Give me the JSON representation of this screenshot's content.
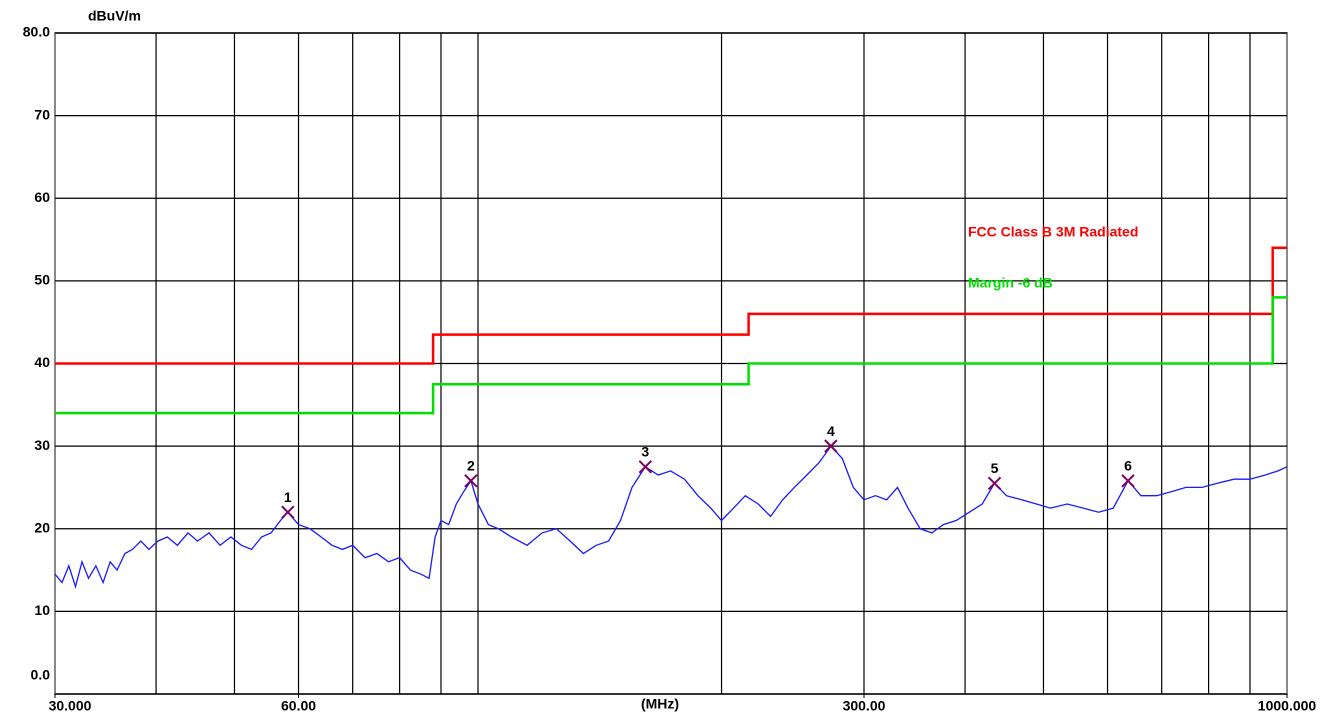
{
  "chart_data": {
    "type": "line",
    "y_unit": "dBuV/m",
    "x_label": "(MHz)",
    "xlog": true,
    "xlim": [
      30,
      1000
    ],
    "ylim": [
      0,
      80
    ],
    "xticks": [
      {
        "value": 30,
        "label": "30.000"
      },
      {
        "value": 60,
        "label": "60.00"
      },
      {
        "value": 300,
        "label": "300.00"
      },
      {
        "value": 1000,
        "label": "1000.000"
      }
    ],
    "xgrid": [
      40,
      50,
      60,
      70,
      80,
      90,
      100,
      200,
      300,
      400,
      500,
      600,
      700,
      800,
      900
    ],
    "yticks": [
      {
        "value": 0,
        "label": "0.0"
      },
      10,
      20,
      30,
      40,
      50,
      60,
      70,
      {
        "value": 80,
        "label": "80.0"
      }
    ],
    "limits": [
      {
        "name": "FCC Class B 3M Radiated",
        "color": "#ff0000",
        "x": [
          30,
          88,
          88,
          216,
          216,
          960,
          960,
          1000
        ],
        "values": [
          40,
          40,
          43.5,
          43.5,
          46,
          46,
          54,
          54
        ]
      },
      {
        "name": "Margin -6 dB",
        "color": "#00e000",
        "x": [
          30,
          88,
          88,
          216,
          216,
          960,
          960,
          1000
        ],
        "values": [
          34,
          34,
          37.5,
          37.5,
          40,
          40,
          48,
          48
        ]
      }
    ],
    "series": [
      {
        "color": "#1a1aff",
        "x": [
          30,
          30.6,
          31.2,
          31.8,
          32.4,
          33,
          33.7,
          34.4,
          35.1,
          35.8,
          36.6,
          37.4,
          38.3,
          39.2,
          40.2,
          41.3,
          42.5,
          43.8,
          45,
          46.5,
          48,
          49.5,
          51,
          52.5,
          54,
          55.5,
          57,
          58.2,
          60,
          62,
          64,
          66,
          68,
          70,
          72.5,
          75,
          77.5,
          80,
          82.5,
          85,
          87,
          88.5,
          90,
          92,
          94,
          96,
          98,
          100,
          103,
          106,
          110,
          115,
          120,
          125,
          130,
          135,
          140,
          145,
          150,
          155,
          161,
          167,
          173,
          180,
          187,
          194,
          200,
          207,
          214,
          222,
          230,
          238,
          246,
          255,
          264,
          273,
          282,
          291,
          300,
          310,
          320,
          330,
          340,
          352,
          364,
          376,
          390,
          405,
          420,
          435,
          450,
          470,
          490,
          510,
          535,
          560,
          585,
          610,
          636,
          660,
          690,
          720,
          750,
          785,
          820,
          860,
          900,
          940,
          975,
          1000
        ],
        "values": [
          14.5,
          13.5,
          15.5,
          13,
          16,
          14,
          15.5,
          13.5,
          16,
          15,
          17,
          17.5,
          18.5,
          17.5,
          18.5,
          19,
          18,
          19.5,
          18.5,
          19.5,
          18,
          19,
          18,
          17.5,
          19,
          19.5,
          21,
          22,
          20.5,
          20,
          19,
          18,
          17.5,
          18,
          16.5,
          17,
          16,
          16.5,
          15,
          14.5,
          14,
          19,
          21,
          20.5,
          23,
          24.5,
          25.8,
          23,
          20.5,
          20,
          19,
          18,
          19.5,
          20,
          18.5,
          17,
          18,
          18.5,
          21,
          25,
          27.5,
          26.5,
          27,
          26,
          24,
          22.5,
          21,
          22.5,
          24,
          23,
          21.5,
          23.5,
          25,
          26.5,
          28,
          30,
          28.5,
          25,
          23.5,
          24,
          23.5,
          25,
          22.5,
          20,
          19.5,
          20.5,
          21,
          22,
          23,
          25.5,
          24,
          23.5,
          23,
          22.5,
          23,
          22.5,
          22,
          22.5,
          25.8,
          24,
          24,
          24.5,
          25,
          25,
          25.5,
          26,
          26,
          26.5,
          27,
          27.5
        ]
      }
    ],
    "markers": {
      "labels": [
        "1",
        "2",
        "3",
        "4",
        "5",
        "6"
      ],
      "color": "#800060",
      "x": [
        58.2,
        98,
        161,
        273,
        435,
        636
      ],
      "values": [
        22,
        25.8,
        27.5,
        30,
        25.5,
        25.8
      ]
    }
  }
}
